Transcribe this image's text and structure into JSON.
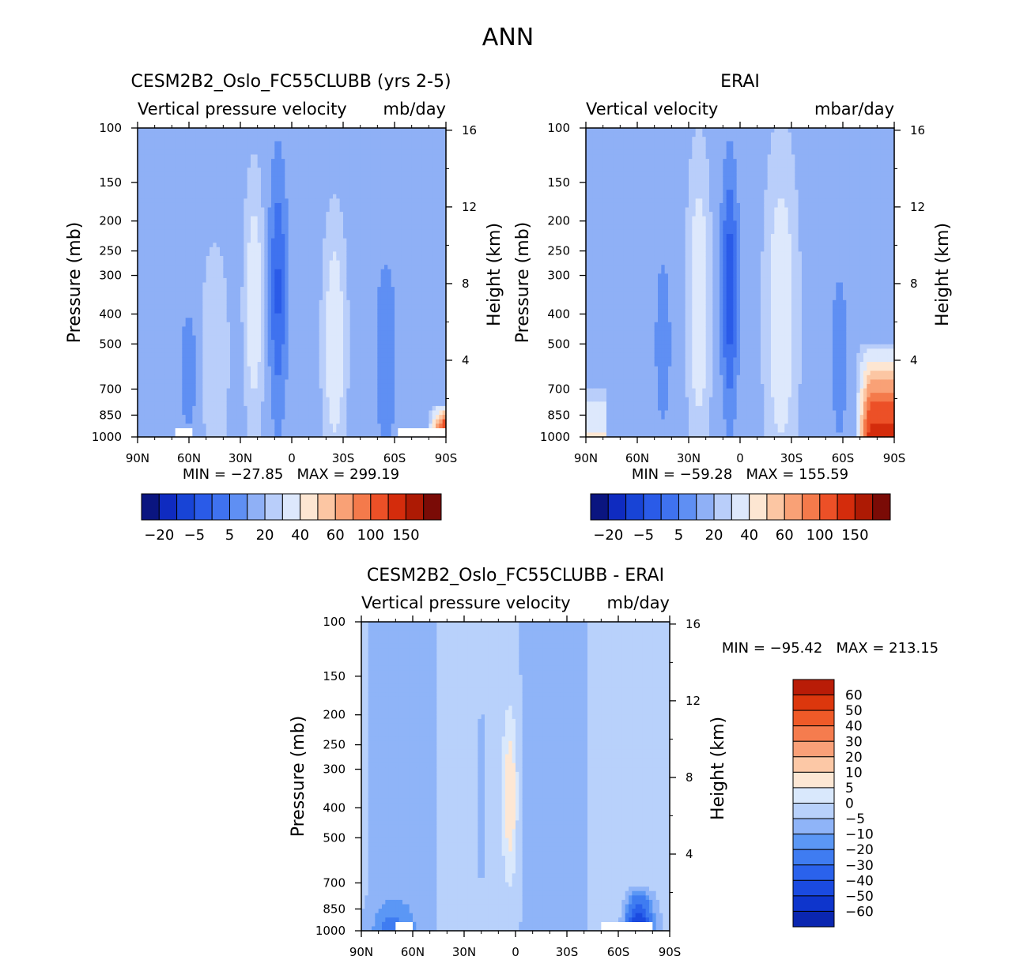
{
  "main_title": "ANN",
  "colors": {
    "model_obs_scale": [
      "#0a1580",
      "#0f2bc0",
      "#1844d6",
      "#2a5be8",
      "#3f72ef",
      "#5f8ff3",
      "#8fb0f6",
      "#b9cefa",
      "#dde8fc",
      "#fde6d2",
      "#fcc6a3",
      "#f9a176",
      "#f47a4b",
      "#ec5027",
      "#d42c0c",
      "#ad1a04",
      "#7a0b06"
    ],
    "diff_scale": [
      "#061a8c",
      "#0a26b0",
      "#0e35cc",
      "#1a4ae0",
      "#2a62ec",
      "#3f7cf1",
      "#5b97f5",
      "#8fb4f8",
      "#b8d1fb",
      "#d9e8fc",
      "#fde7d4",
      "#fcc8a6",
      "#f9a078",
      "#f57c4e",
      "#ef5a28",
      "#dc370d",
      "#b91c07",
      "#8c0d05"
    ]
  },
  "chart_data": [
    {
      "type": "heatmap",
      "panel": "model",
      "title": "CESM2B2_Oslo_FC55CLUBB (yrs 2-5)",
      "left_subtitle": "Vertical pressure velocity",
      "right_subtitle": "mb/day",
      "ylabel": "Pressure (mb)",
      "y2label": "Height (km)",
      "xlim": [
        90,
        -90
      ],
      "ylim": [
        1000,
        100
      ],
      "y_ticks": [
        "100",
        "150",
        "200",
        "250",
        "300",
        "400",
        "500",
        "700",
        "850",
        "1000"
      ],
      "y_tick_values": [
        100,
        150,
        200,
        250,
        300,
        400,
        500,
        700,
        850,
        1000
      ],
      "y2_ticks": [
        "16",
        "12",
        "8",
        "4"
      ],
      "y2_tick_values": [
        16,
        12,
        8,
        4
      ],
      "x_ticks": [
        "90N",
        "60N",
        "30N",
        "0",
        "30S",
        "60S",
        "90S"
      ],
      "x_tick_values": [
        90,
        60,
        30,
        0,
        -30,
        -60,
        -90
      ],
      "min": -27.85,
      "max": 299.19,
      "stats_text": "MIN = -27.85   MAX = 299.19",
      "colorbar_labels": [
        "-20",
        "-5",
        "5",
        "20",
        "40",
        "60",
        "100",
        "150"
      ]
    },
    {
      "type": "heatmap",
      "panel": "obs",
      "title": "ERAI",
      "left_subtitle": "Vertical velocity",
      "right_subtitle": "mbar/day",
      "ylabel": "Pressure (mb)",
      "y2label": "Height (km)",
      "xlim": [
        90,
        -90
      ],
      "ylim": [
        1000,
        100
      ],
      "y_ticks": [
        "100",
        "150",
        "200",
        "250",
        "300",
        "400",
        "500",
        "700",
        "850",
        "1000"
      ],
      "y_tick_values": [
        100,
        150,
        200,
        250,
        300,
        400,
        500,
        700,
        850,
        1000
      ],
      "y2_ticks": [
        "16",
        "12",
        "8",
        "4"
      ],
      "y2_tick_values": [
        16,
        12,
        8,
        4
      ],
      "x_ticks": [
        "90N",
        "60N",
        "30N",
        "0",
        "30S",
        "60S",
        "90S"
      ],
      "x_tick_values": [
        90,
        60,
        30,
        0,
        -30,
        -60,
        -90
      ],
      "min": -59.28,
      "max": 155.59,
      "stats_text": "MIN = -59.28   MAX = 155.59",
      "colorbar_labels": [
        "-20",
        "-5",
        "5",
        "20",
        "40",
        "60",
        "100",
        "150"
      ]
    },
    {
      "type": "heatmap",
      "panel": "diff",
      "title": "CESM2B2_Oslo_FC55CLUBB - ERAI",
      "left_subtitle": "Vertical pressure velocity",
      "right_subtitle": "mb/day",
      "ylabel": "Pressure (mb)",
      "y2label": "Height (km)",
      "xlim": [
        90,
        -90
      ],
      "ylim": [
        1000,
        100
      ],
      "y_ticks": [
        "100",
        "150",
        "200",
        "250",
        "300",
        "400",
        "500",
        "700",
        "850",
        "1000"
      ],
      "y_tick_values": [
        100,
        150,
        200,
        250,
        300,
        400,
        500,
        700,
        850,
        1000
      ],
      "y2_ticks": [
        "16",
        "12",
        "8",
        "4"
      ],
      "y2_tick_values": [
        16,
        12,
        8,
        4
      ],
      "x_ticks": [
        "90N",
        "60N",
        "30N",
        "0",
        "30S",
        "60S",
        "90S"
      ],
      "x_tick_values": [
        90,
        60,
        30,
        0,
        -30,
        -60,
        -90
      ],
      "min": -95.42,
      "max": 213.15,
      "stats_text": "MIN = -95.42   MAX = 213.15",
      "colorbar_labels": [
        "60",
        "50",
        "40",
        "30",
        "20",
        "10",
        "5",
        "0",
        "-5",
        "-10",
        "-20",
        "-30",
        "-40",
        "-50",
        "-60"
      ]
    }
  ]
}
